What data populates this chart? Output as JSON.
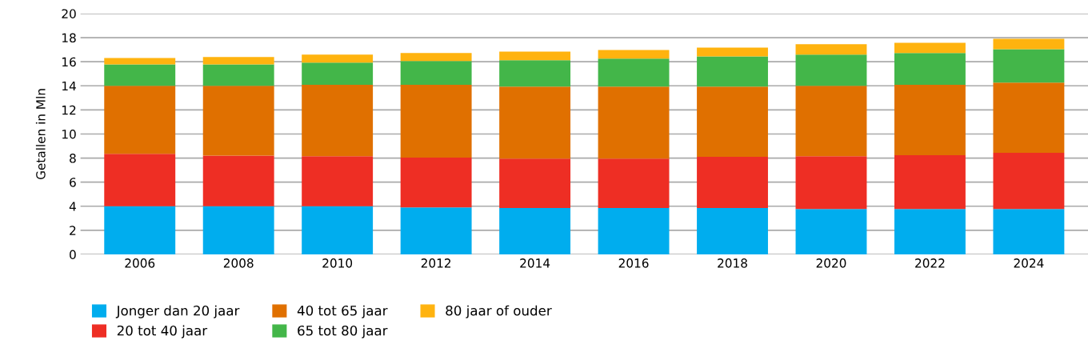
{
  "chart_data": {
    "type": "bar",
    "stacked": true,
    "ylabel": "Getallen in Mln",
    "categories": [
      "2006",
      "2008",
      "2010",
      "2012",
      "2014",
      "2016",
      "2018",
      "2020",
      "2022",
      "2024"
    ],
    "series": [
      {
        "name": "Jonger dan 20 jaar",
        "color": "#00adee",
        "values": [
          4.0,
          4.0,
          4.0,
          3.91,
          3.85,
          3.85,
          3.85,
          3.77,
          3.77,
          3.77
        ]
      },
      {
        "name": "20 tot 40 jaar",
        "color": "#ee2e24",
        "values": [
          4.35,
          4.21,
          4.16,
          4.13,
          4.11,
          4.11,
          4.25,
          4.39,
          4.47,
          4.67
        ]
      },
      {
        "name": "40 tot 65 jaar",
        "color": "#e07000",
        "values": [
          5.65,
          5.79,
          5.92,
          6.04,
          5.98,
          5.98,
          5.84,
          5.84,
          5.84,
          5.83
        ]
      },
      {
        "name": "65 tot 80 jaar",
        "color": "#43b649",
        "values": [
          1.78,
          1.78,
          1.84,
          1.98,
          2.18,
          2.32,
          2.51,
          2.59,
          2.65,
          2.77
        ]
      },
      {
        "name": "80 jaar of ouder",
        "color": "#ffb30f",
        "values": [
          0.53,
          0.62,
          0.67,
          0.67,
          0.72,
          0.72,
          0.73,
          0.87,
          0.84,
          0.87
        ]
      }
    ],
    "ylim": [
      0,
      20
    ],
    "yticks": [
      0,
      2,
      4,
      6,
      8,
      10,
      12,
      14,
      16,
      18,
      20
    ],
    "grid": "y",
    "legend": "bottom left"
  }
}
